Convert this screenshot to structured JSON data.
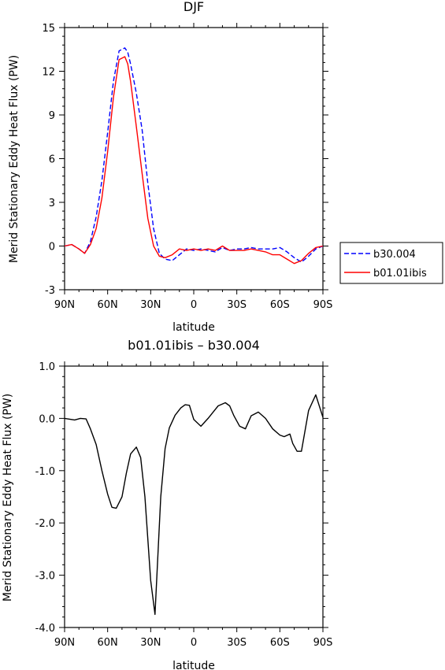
{
  "chart_data": [
    {
      "type": "line",
      "title": "DJF",
      "xlabel": "latitude",
      "ylabel": "Merid Stationary Eddy Heat Flux (PW)",
      "xlim": [
        90,
        -90
      ],
      "ylim": [
        -3,
        15
      ],
      "x_ticks": [
        90,
        60,
        30,
        0,
        -30,
        -60,
        -90
      ],
      "x_tick_labels": [
        "90N",
        "60N",
        "30N",
        "0",
        "30S",
        "60S",
        "90S"
      ],
      "y_ticks": [
        -3,
        0,
        3,
        6,
        9,
        12,
        15
      ],
      "y_tick_labels": [
        "-3",
        "0",
        "3",
        "6",
        "9",
        "12",
        "15"
      ],
      "legend_position": "right",
      "series": [
        {
          "name": "b30.004",
          "color": "#0000ff",
          "dash": "dashed",
          "x": [
            90,
            85,
            80,
            76,
            72,
            68,
            64,
            60,
            56,
            52,
            48,
            46,
            44,
            40,
            36,
            32,
            28,
            24,
            20,
            15,
            10,
            5,
            0,
            -5,
            -10,
            -15,
            -20,
            -25,
            -30,
            -35,
            -40,
            -45,
            -50,
            -55,
            -60,
            -65,
            -70,
            -75,
            -80,
            -85,
            -90
          ],
          "y": [
            0.0,
            0.1,
            -0.2,
            -0.5,
            0.3,
            2.0,
            4.5,
            7.8,
            11.3,
            13.4,
            13.6,
            13.3,
            12.5,
            10.5,
            8.0,
            4.3,
            1.2,
            -0.5,
            -0.9,
            -1.0,
            -0.6,
            -0.2,
            -0.3,
            -0.2,
            -0.3,
            -0.4,
            -0.1,
            -0.3,
            -0.2,
            -0.2,
            -0.1,
            -0.2,
            -0.2,
            -0.2,
            -0.1,
            -0.4,
            -0.8,
            -1.1,
            -0.7,
            -0.2,
            0.0
          ]
        },
        {
          "name": "b01.01ibis",
          "color": "#ff0000",
          "dash": "solid",
          "x": [
            90,
            85,
            80,
            76,
            72,
            68,
            64,
            60,
            56,
            52,
            48,
            46,
            44,
            40,
            36,
            32,
            28,
            24,
            20,
            15,
            10,
            5,
            0,
            -5,
            -10,
            -15,
            -20,
            -25,
            -30,
            -35,
            -40,
            -45,
            -50,
            -55,
            -60,
            -65,
            -70,
            -75,
            -80,
            -85,
            -90
          ],
          "y": [
            0.0,
            0.1,
            -0.2,
            -0.5,
            0.1,
            1.2,
            3.3,
            6.5,
            10.2,
            12.8,
            13.0,
            12.5,
            11.3,
            8.2,
            5.0,
            1.9,
            0.0,
            -0.7,
            -0.8,
            -0.6,
            -0.2,
            -0.3,
            -0.2,
            -0.3,
            -0.2,
            -0.3,
            0.0,
            -0.3,
            -0.3,
            -0.3,
            -0.2,
            -0.3,
            -0.4,
            -0.6,
            -0.6,
            -0.9,
            -1.2,
            -1.0,
            -0.5,
            -0.1,
            0.0
          ]
        }
      ]
    },
    {
      "type": "line",
      "title": "b01.01ibis – b30.004",
      "xlabel": "latitude",
      "ylabel": "Merid Stationary Eddy Heat Flux (PW)",
      "xlim": [
        90,
        -90
      ],
      "ylim": [
        -4,
        1
      ],
      "x_ticks": [
        90,
        60,
        30,
        0,
        -30,
        -60,
        -90
      ],
      "x_tick_labels": [
        "90N",
        "60N",
        "30N",
        "0",
        "30S",
        "60S",
        "90S"
      ],
      "y_ticks": [
        -4,
        -3,
        -2,
        -1,
        0,
        1
      ],
      "y_tick_labels": [
        "-4.0",
        "-3.0",
        "-2.0",
        "-1.0",
        "0.0",
        "1.0"
      ],
      "series": [
        {
          "color": "#000000",
          "dash": "solid",
          "x": [
            90,
            83,
            79,
            75,
            72,
            68,
            64,
            60,
            57,
            54,
            50,
            47,
            44,
            40,
            37,
            34,
            30,
            27,
            23,
            20,
            17,
            13,
            9,
            6,
            3,
            0,
            -5,
            -10,
            -15,
            -17,
            -22,
            -25,
            -28,
            -32,
            -36,
            -40,
            -45,
            -50,
            -55,
            -60,
            -63,
            -67,
            -69,
            -72,
            -75,
            -80,
            -85,
            -90
          ],
          "y": [
            0.0,
            -0.03,
            0.0,
            -0.01,
            -0.2,
            -0.5,
            -1.0,
            -1.45,
            -1.7,
            -1.72,
            -1.5,
            -1.05,
            -0.68,
            -0.55,
            -0.75,
            -1.5,
            -3.1,
            -3.75,
            -1.5,
            -0.58,
            -0.18,
            0.06,
            0.2,
            0.26,
            0.25,
            -0.02,
            -0.15,
            0.0,
            0.17,
            0.24,
            0.3,
            0.24,
            0.05,
            -0.15,
            -0.2,
            0.05,
            0.12,
            0.0,
            -0.2,
            -0.32,
            -0.35,
            -0.3,
            -0.48,
            -0.63,
            -0.63,
            0.15,
            0.45,
            0.02
          ]
        }
      ]
    }
  ]
}
